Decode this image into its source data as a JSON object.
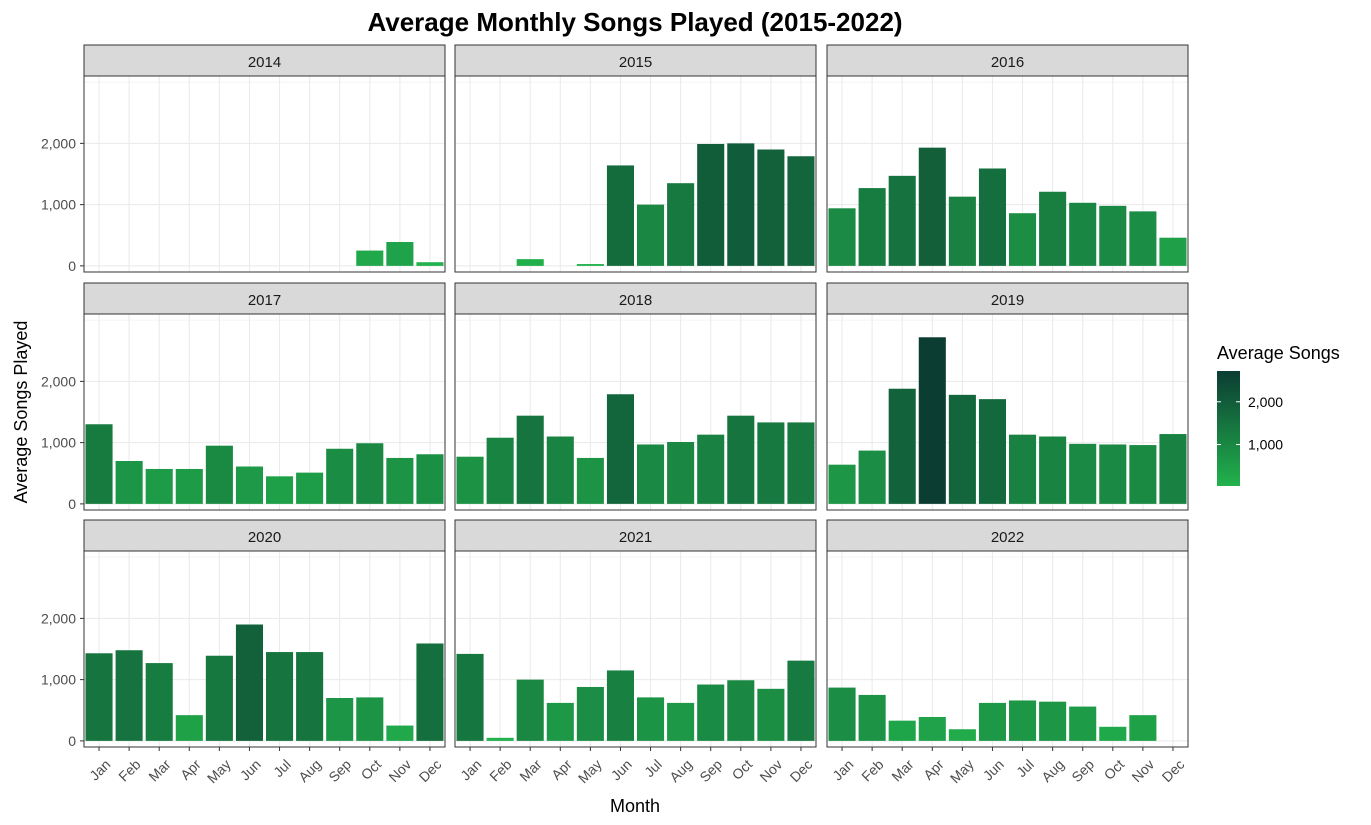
{
  "chart_data": {
    "type": "bar",
    "title": "Average Monthly Songs Played (2015-2022)",
    "xlabel": "Month",
    "ylabel": "Average Songs Played",
    "categories": [
      "Jan",
      "Feb",
      "Mar",
      "Apr",
      "May",
      "Jun",
      "Jul",
      "Aug",
      "Sep",
      "Oct",
      "Nov",
      "Dec"
    ],
    "ylim": [
      -100,
      3100
    ],
    "yticks": [
      0,
      1000,
      2000
    ],
    "ytick_labels": [
      "0",
      "1,000",
      "2,000"
    ],
    "grid": true,
    "facets": [
      {
        "label": "2014",
        "values": [
          null,
          null,
          null,
          null,
          null,
          null,
          null,
          null,
          null,
          250,
          390,
          60
        ]
      },
      {
        "label": "2015",
        "values": [
          null,
          null,
          110,
          null,
          30,
          1640,
          1000,
          1350,
          1990,
          2000,
          1900,
          1790
        ]
      },
      {
        "label": "2016",
        "values": [
          940,
          1270,
          1470,
          1930,
          1130,
          1590,
          860,
          1210,
          1030,
          980,
          890,
          460
        ]
      },
      {
        "label": "2017",
        "values": [
          1300,
          700,
          570,
          570,
          950,
          610,
          450,
          510,
          900,
          990,
          750,
          810
        ]
      },
      {
        "label": "2018",
        "values": [
          770,
          1080,
          1440,
          1100,
          750,
          1790,
          970,
          1010,
          1130,
          1440,
          1330,
          1330
        ]
      },
      {
        "label": "2019",
        "values": [
          640,
          870,
          1880,
          2720,
          1780,
          1710,
          1130,
          1100,
          980,
          970,
          960,
          1140
        ]
      },
      {
        "label": "2020",
        "values": [
          1430,
          1480,
          1270,
          420,
          1390,
          1900,
          1450,
          1450,
          700,
          710,
          250,
          1590
        ]
      },
      {
        "label": "2021",
        "values": [
          1420,
          50,
          1000,
          620,
          880,
          1150,
          710,
          620,
          920,
          990,
          850,
          1310
        ]
      },
      {
        "label": "2022",
        "values": [
          870,
          750,
          330,
          390,
          190,
          620,
          660,
          640,
          560,
          230,
          420,
          null
        ]
      }
    ],
    "legend": {
      "title": "Average Songs",
      "placement": "right",
      "breaks": [
        1000,
        2000
      ],
      "labels": [
        "1,000",
        "2,000"
      ],
      "range": [
        30,
        2720
      ],
      "color_low": "#22b24c",
      "color_high": "#0b3d33"
    }
  }
}
